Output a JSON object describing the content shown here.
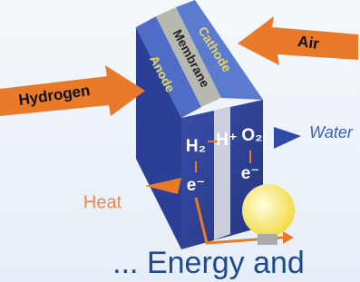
{
  "diagram": {
    "layers": [
      "Anode",
      "Membrane",
      "Cathode"
    ],
    "inputs": {
      "hydrogen": "Hydrogen",
      "air": "Air"
    },
    "outputs": {
      "water": "Water",
      "heat": "Heat"
    },
    "species": {
      "h2": "H₂",
      "h_plus": "H⁺",
      "o2": "O₂",
      "e_left": "e⁻",
      "e_right": "e⁻"
    },
    "caption": "... Energy and"
  }
}
